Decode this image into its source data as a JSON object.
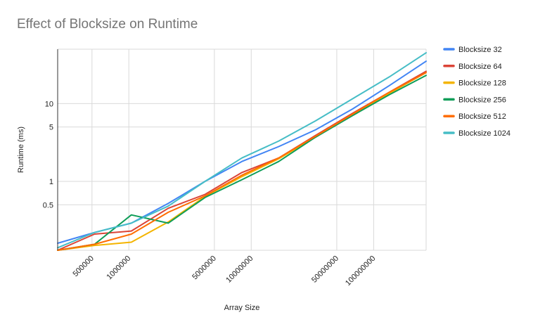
{
  "chart_data": {
    "type": "line",
    "title": "Effect of Blocksize on Runtime",
    "xlabel": "Array Size",
    "ylabel": "Runtime (ms)",
    "x_scale": "log",
    "y_scale": "log",
    "x_ticks": [
      "500000",
      "1000000",
      "5000000",
      "10000000",
      "50000000",
      "100000000"
    ],
    "y_ticks": [
      "0.5",
      "1",
      "5",
      "10"
    ],
    "xlim": [
      262144,
      268435456
    ],
    "ylim": [
      0.13,
      50
    ],
    "legend_position": "right",
    "x": [
      262144,
      524288,
      1048576,
      2097152,
      4194304,
      8388608,
      16777216,
      33554432,
      67108864,
      134217728,
      268435456
    ],
    "series": [
      {
        "name": "Blocksize 32",
        "color": "#4285f4",
        "values": [
          0.16,
          0.22,
          0.29,
          0.52,
          1.0,
          1.8,
          2.8,
          4.6,
          8.5,
          17,
          35
        ]
      },
      {
        "name": "Blocksize 64",
        "color": "#db4437",
        "values": [
          0.13,
          0.21,
          0.23,
          0.45,
          0.68,
          1.3,
          2.0,
          3.9,
          7.5,
          14,
          26
        ]
      },
      {
        "name": "Blocksize 128",
        "color": "#f4b400",
        "values": [
          0.13,
          0.15,
          0.165,
          0.3,
          0.64,
          1.15,
          1.95,
          3.7,
          7.2,
          13.5,
          25
        ]
      },
      {
        "name": "Blocksize 256",
        "color": "#0f9d58",
        "values": [
          0.13,
          0.155,
          0.37,
          0.29,
          0.62,
          1.05,
          1.8,
          3.7,
          7.0,
          13,
          23
        ]
      },
      {
        "name": "Blocksize 512",
        "color": "#ff6d01",
        "values": [
          0.13,
          0.155,
          0.21,
          0.4,
          0.65,
          1.2,
          2.0,
          3.8,
          7.3,
          14,
          25
        ]
      },
      {
        "name": "Blocksize 1024",
        "color": "#46bdc6",
        "values": [
          0.14,
          0.22,
          0.29,
          0.48,
          1.0,
          2.0,
          3.3,
          6.0,
          11.5,
          22,
          45
        ]
      }
    ]
  }
}
